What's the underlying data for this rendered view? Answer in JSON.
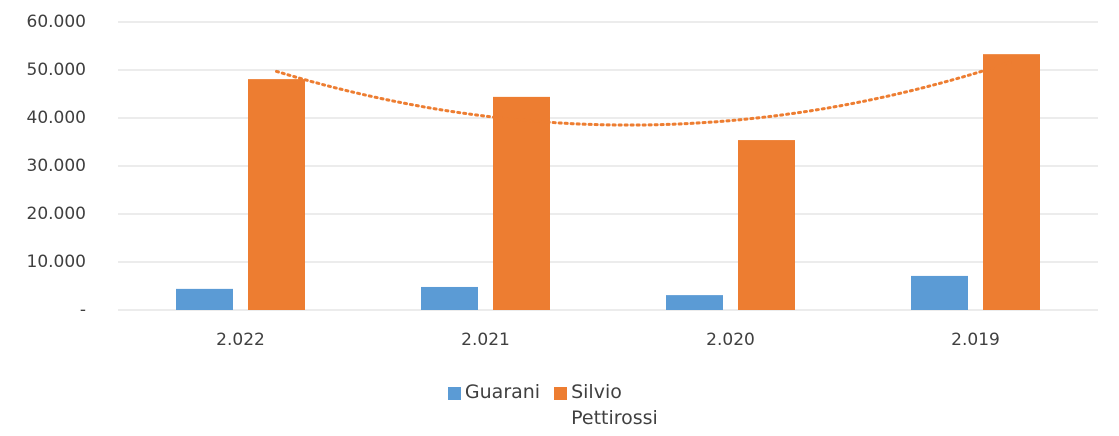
{
  "chart_data": {
    "type": "bar",
    "categories": [
      "2.022",
      "2.021",
      "2.020",
      "2.019"
    ],
    "series": [
      {
        "name": "Guarani",
        "color": "#5b9bd5",
        "values": [
          4400,
          4800,
          3100,
          7100
        ]
      },
      {
        "name": "Silvio Pettirossi",
        "color": "#ed7d31",
        "values": [
          48100,
          44400,
          35400,
          53300
        ],
        "trendline": "polynomial"
      }
    ],
    "ylim": [
      0,
      60000
    ],
    "yticks": [
      {
        "value": 0,
        "label": "-"
      },
      {
        "value": 10000,
        "label": "10.000"
      },
      {
        "value": 20000,
        "label": "20.000"
      },
      {
        "value": 30000,
        "label": "30.000"
      },
      {
        "value": 40000,
        "label": "40.000"
      },
      {
        "value": 50000,
        "label": "50.000"
      },
      {
        "value": 60000,
        "label": "60.000"
      }
    ],
    "grid": true,
    "legend": "bottom"
  }
}
